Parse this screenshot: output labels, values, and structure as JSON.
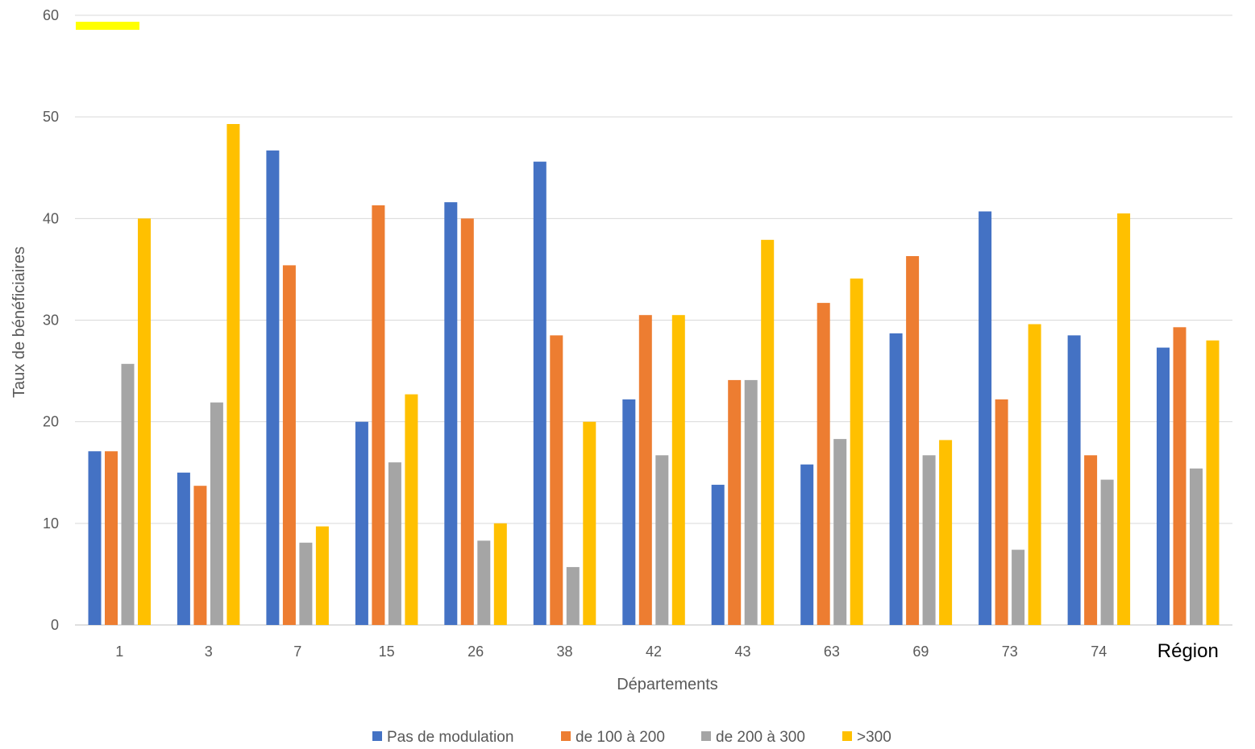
{
  "chart_data": {
    "type": "bar",
    "title": "",
    "xlabel": "Départements",
    "ylabel": "Taux de bénéficiaires",
    "ylim": [
      0,
      60
    ],
    "yticks": [
      "0",
      "10",
      "20",
      "30",
      "40",
      "50",
      "60"
    ],
    "grid": true,
    "legend_position": "bottom",
    "categories": [
      "1",
      "3",
      "7",
      "15",
      "26",
      "38",
      "42",
      "43",
      "63",
      "69",
      "73",
      "74",
      "Région"
    ],
    "series": [
      {
        "name": "Pas de modulation",
        "color": "#4472C4",
        "values": [
          17.1,
          15.0,
          46.7,
          20.0,
          41.6,
          45.6,
          22.2,
          13.8,
          15.8,
          28.7,
          40.7,
          28.5,
          27.3
        ]
      },
      {
        "name": "de 100 à 200",
        "color": "#ED7D31",
        "values": [
          17.1,
          13.7,
          35.4,
          41.3,
          40.0,
          28.5,
          30.5,
          24.1,
          31.7,
          36.3,
          22.2,
          16.7,
          29.3
        ]
      },
      {
        "name": "de 200 à 300",
        "color": "#A5A5A5",
        "values": [
          25.7,
          21.9,
          8.1,
          16.0,
          8.3,
          5.7,
          16.7,
          24.1,
          18.3,
          16.7,
          7.4,
          14.3,
          15.4
        ]
      },
      {
        "name": ">300",
        "color": "#FFC000",
        "values": [
          40.0,
          49.3,
          9.7,
          22.7,
          10.0,
          20.0,
          30.5,
          37.9,
          34.1,
          18.2,
          29.6,
          40.5,
          28.0
        ]
      }
    ],
    "marker_color": "#FFFF00"
  }
}
